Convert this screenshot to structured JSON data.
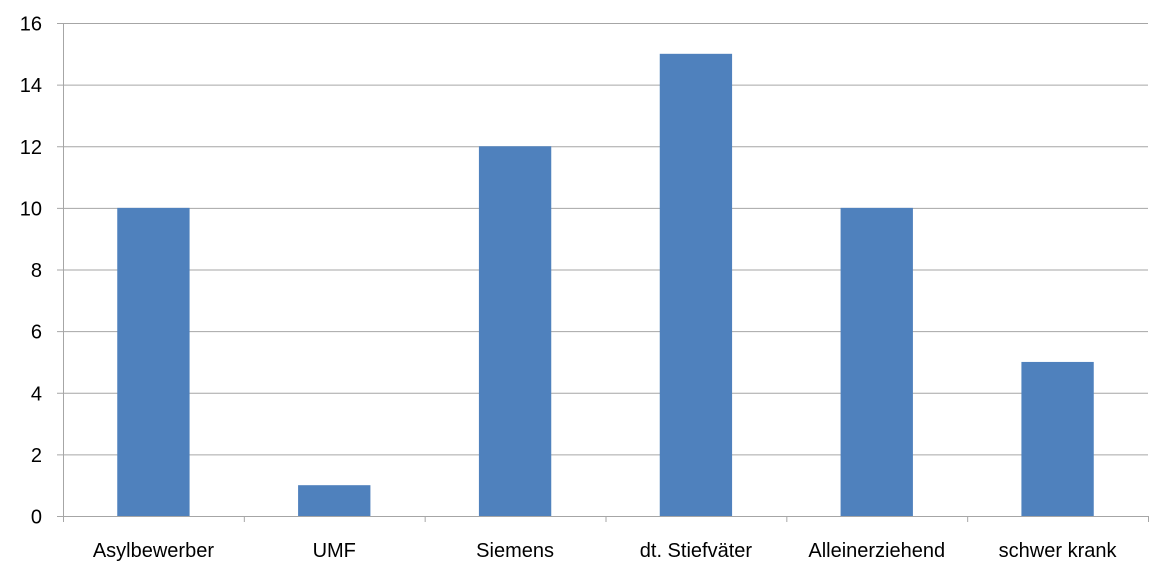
{
  "chart_data": {
    "type": "bar",
    "title": "",
    "xlabel": "",
    "ylabel": "",
    "categories": [
      "Asylbewerber",
      "UMF",
      "Siemens",
      "dt. Stiefväter",
      "Alleinerziehend",
      "schwer krank"
    ],
    "values": [
      10,
      1,
      12,
      15,
      10,
      5
    ],
    "ylim": [
      0,
      16
    ],
    "yticks": [
      "0",
      "2",
      "4",
      "6",
      "8",
      "10",
      "12",
      "14",
      "16"
    ],
    "grid": true,
    "legend": "none",
    "bar_color": "#4f81bd",
    "grid_color": "#a6a6a6"
  }
}
